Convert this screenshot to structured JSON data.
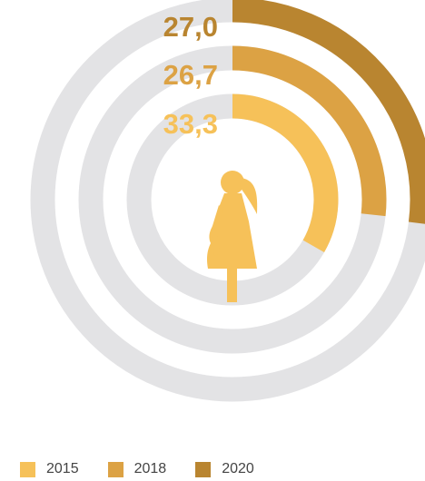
{
  "chart_data": {
    "type": "radial-bar",
    "max": 100,
    "series": [
      {
        "name": "2015",
        "value": 33.3,
        "label": "33,3",
        "color": "#f6c159"
      },
      {
        "name": "2018",
        "value": 26.7,
        "label": "26,7",
        "color": "#dca244"
      },
      {
        "name": "2020",
        "value": 27.0,
        "label": "27,0",
        "color": "#b98530"
      }
    ],
    "track_color": "#e3e3e5",
    "center_icon": "pregnant-woman-icon"
  },
  "legend": {
    "items": [
      "2015",
      "2018",
      "2020"
    ]
  }
}
